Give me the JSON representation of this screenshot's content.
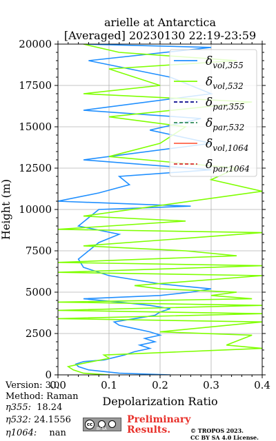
{
  "chart_data": {
    "type": "line",
    "title": "arielle at Antarctica",
    "subtitle": "[Averaged] 20230130 22:19-23:59",
    "xlabel": "Depolarization Ratio",
    "ylabel": "Height (m)",
    "xlim": [
      0.0,
      0.4
    ],
    "ylim": [
      0,
      20000
    ],
    "xticks": [
      "0.0",
      "0.1",
      "0.2",
      "0.3",
      "0.4"
    ],
    "yticks": [
      "0",
      "2500",
      "5000",
      "7500",
      "10000",
      "12500",
      "15000",
      "17500",
      "20000"
    ],
    "grid": true,
    "legend_position": "top-right",
    "legend_labels": [
      "vol,355",
      "vol,532",
      "par,355",
      "par,532",
      "vol,1064",
      "par,1064"
    ],
    "series": [
      {
        "name": "δvol,355",
        "color": "#1f8fff",
        "points": [
          [
            0.22,
            0
          ],
          [
            0.12,
            100
          ],
          [
            0.06,
            300
          ],
          [
            0.04,
            500
          ],
          [
            0.035,
            650
          ],
          [
            0.05,
            800
          ],
          [
            0.09,
            900
          ],
          [
            0.13,
            1200
          ],
          [
            0.15,
            1400
          ],
          [
            0.18,
            1600
          ],
          [
            0.16,
            1800
          ],
          [
            0.19,
            2000
          ],
          [
            0.17,
            2200
          ],
          [
            0.2,
            2400
          ],
          [
            0.18,
            2600
          ],
          [
            0.15,
            2800
          ],
          [
            0.12,
            3000
          ],
          [
            0.11,
            3200
          ],
          [
            0.15,
            3400
          ],
          [
            0.19,
            3600
          ],
          [
            0.2,
            3800
          ],
          [
            0.22,
            4000
          ],
          [
            0.18,
            4200
          ],
          [
            0.12,
            4400
          ],
          [
            0.05,
            4600
          ],
          [
            0.2,
            4800
          ],
          [
            0.26,
            5000
          ],
          [
            0.3,
            5200
          ],
          [
            0.2,
            5500
          ],
          [
            0.1,
            6000
          ],
          [
            0.05,
            6500
          ],
          [
            0.04,
            7000
          ],
          [
            0.06,
            7500
          ],
          [
            0.08,
            8000
          ],
          [
            0.12,
            8500
          ],
          [
            0.04,
            9000
          ],
          [
            0.06,
            9500
          ],
          [
            0.08,
            10000
          ],
          [
            0.26,
            10200
          ],
          [
            0.0,
            10500
          ],
          [
            0.08,
            11000
          ],
          [
            0.14,
            11500
          ],
          [
            0.12,
            12000
          ],
          [
            0.3,
            12400
          ],
          [
            0.05,
            13000
          ],
          [
            0.3,
            14000
          ],
          [
            0.18,
            14800
          ],
          [
            0.28,
            15500
          ],
          [
            0.05,
            16000
          ],
          [
            0.3,
            17000
          ],
          [
            0.22,
            18000
          ],
          [
            0.06,
            19000
          ],
          [
            0.3,
            19800
          ],
          [
            0.05,
            20000
          ]
        ]
      },
      {
        "name": "δvol,532",
        "color": "#7fff00",
        "points": [
          [
            0.1,
            0
          ],
          [
            0.05,
            100
          ],
          [
            0.03,
            300
          ],
          [
            0.02,
            500
          ],
          [
            0.05,
            700
          ],
          [
            0.1,
            1000
          ],
          [
            0.09,
            1200
          ],
          [
            0.4,
            1600
          ],
          [
            0.33,
            1800
          ],
          [
            0.38,
            2400
          ],
          [
            0.2,
            2600
          ],
          [
            0.4,
            3200
          ],
          [
            0.0,
            3400
          ],
          [
            0.4,
            3700
          ],
          [
            0.0,
            3900
          ],
          [
            0.4,
            4200
          ],
          [
            0.0,
            4400
          ],
          [
            0.38,
            4600
          ],
          [
            0.3,
            4800
          ],
          [
            0.35,
            5000
          ],
          [
            0.2,
            5200
          ],
          [
            0.15,
            5400
          ],
          [
            0.4,
            6000
          ],
          [
            0.0,
            6200
          ],
          [
            0.4,
            6600
          ],
          [
            0.0,
            6800
          ],
          [
            0.35,
            7200
          ],
          [
            0.25,
            7500
          ],
          [
            0.05,
            7800
          ],
          [
            0.4,
            8600
          ],
          [
            0.0,
            8800
          ],
          [
            0.25,
            9300
          ],
          [
            0.05,
            9600
          ],
          [
            0.4,
            11100
          ],
          [
            0.3,
            11800
          ],
          [
            0.35,
            12500
          ],
          [
            0.1,
            13200
          ],
          [
            0.2,
            14000
          ],
          [
            0.25,
            15000
          ],
          [
            0.1,
            15600
          ],
          [
            0.38,
            16500
          ],
          [
            0.05,
            17000
          ],
          [
            0.2,
            17500
          ],
          [
            0.1,
            18500
          ],
          [
            0.35,
            19000
          ],
          [
            0.12,
            19500
          ],
          [
            0.05,
            20000
          ]
        ]
      },
      {
        "name": "δpar,355",
        "color": "#00008b",
        "dashed": true,
        "points": []
      },
      {
        "name": "δpar,532",
        "color": "#2e8b57",
        "dashed": true,
        "points": []
      },
      {
        "name": "δvol,1064",
        "color": "#ff6347",
        "points": []
      },
      {
        "name": "δpar,1064",
        "color": "#d62728",
        "dashed": true,
        "points": []
      }
    ]
  },
  "meta": {
    "version": "Version: 3.0",
    "method": "Method: Raman",
    "eta355_label": "η355:",
    "eta355_value": "18.24",
    "eta532_label": "η532:",
    "eta532_value": "24.1556",
    "eta1064_label": "η1064:",
    "eta1064_value": "nan"
  },
  "footer": {
    "cc_text": "cc",
    "cc_by": "BY  SA",
    "preliminary": "Preliminary",
    "results": "Results.",
    "copyright_line1": "© TROPOS 2023.",
    "copyright_line2": "CC BY SA 4.0 License."
  }
}
